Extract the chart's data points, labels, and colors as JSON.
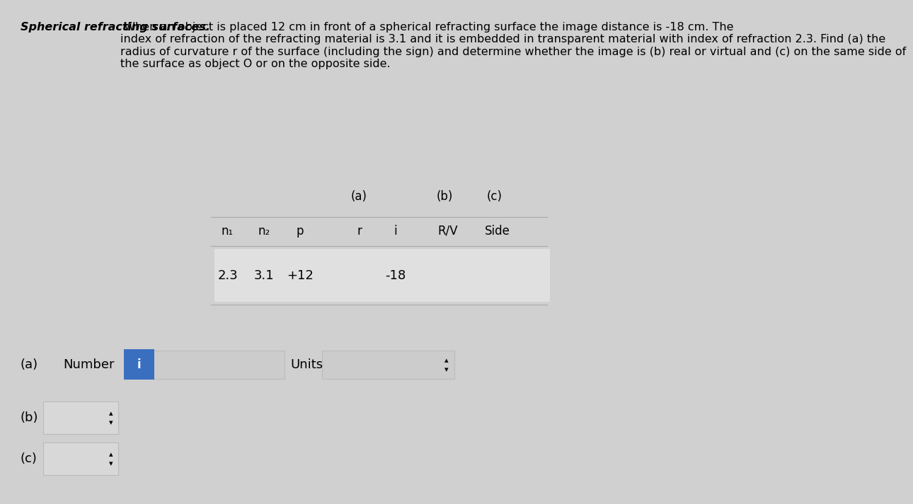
{
  "bg_color": "#d0d0d0",
  "title_text": "Spherical refracting surfaces.",
  "problem_text": " When an object is placed 12 cm in front of a spherical refracting surface the image distance is -18 cm. The\nindex of refraction of the refracting material is 3.1 and it is embedded in transparent material with index of refraction 2.3. Find (a) the\nradius of curvature r of the surface (including the sign) and determine whether the image is (b) real or virtual and (c) on the same side of\nthe surface as object O or on the opposite side.",
  "col_headers": [
    "n₁",
    "n₂",
    "p",
    "r",
    "i",
    "R/V",
    "Side"
  ],
  "col_header_ab": [
    "(a)",
    "(b)",
    "(c)"
  ],
  "data_row": [
    "2.3",
    "3.1",
    "+12",
    "",
    "-18",
    "",
    ""
  ],
  "answer_label_a": "(a)",
  "answer_label_b": "(b)",
  "answer_label_c": "(c)",
  "number_label": "Number",
  "units_label": "Units",
  "blue_label": "i"
}
